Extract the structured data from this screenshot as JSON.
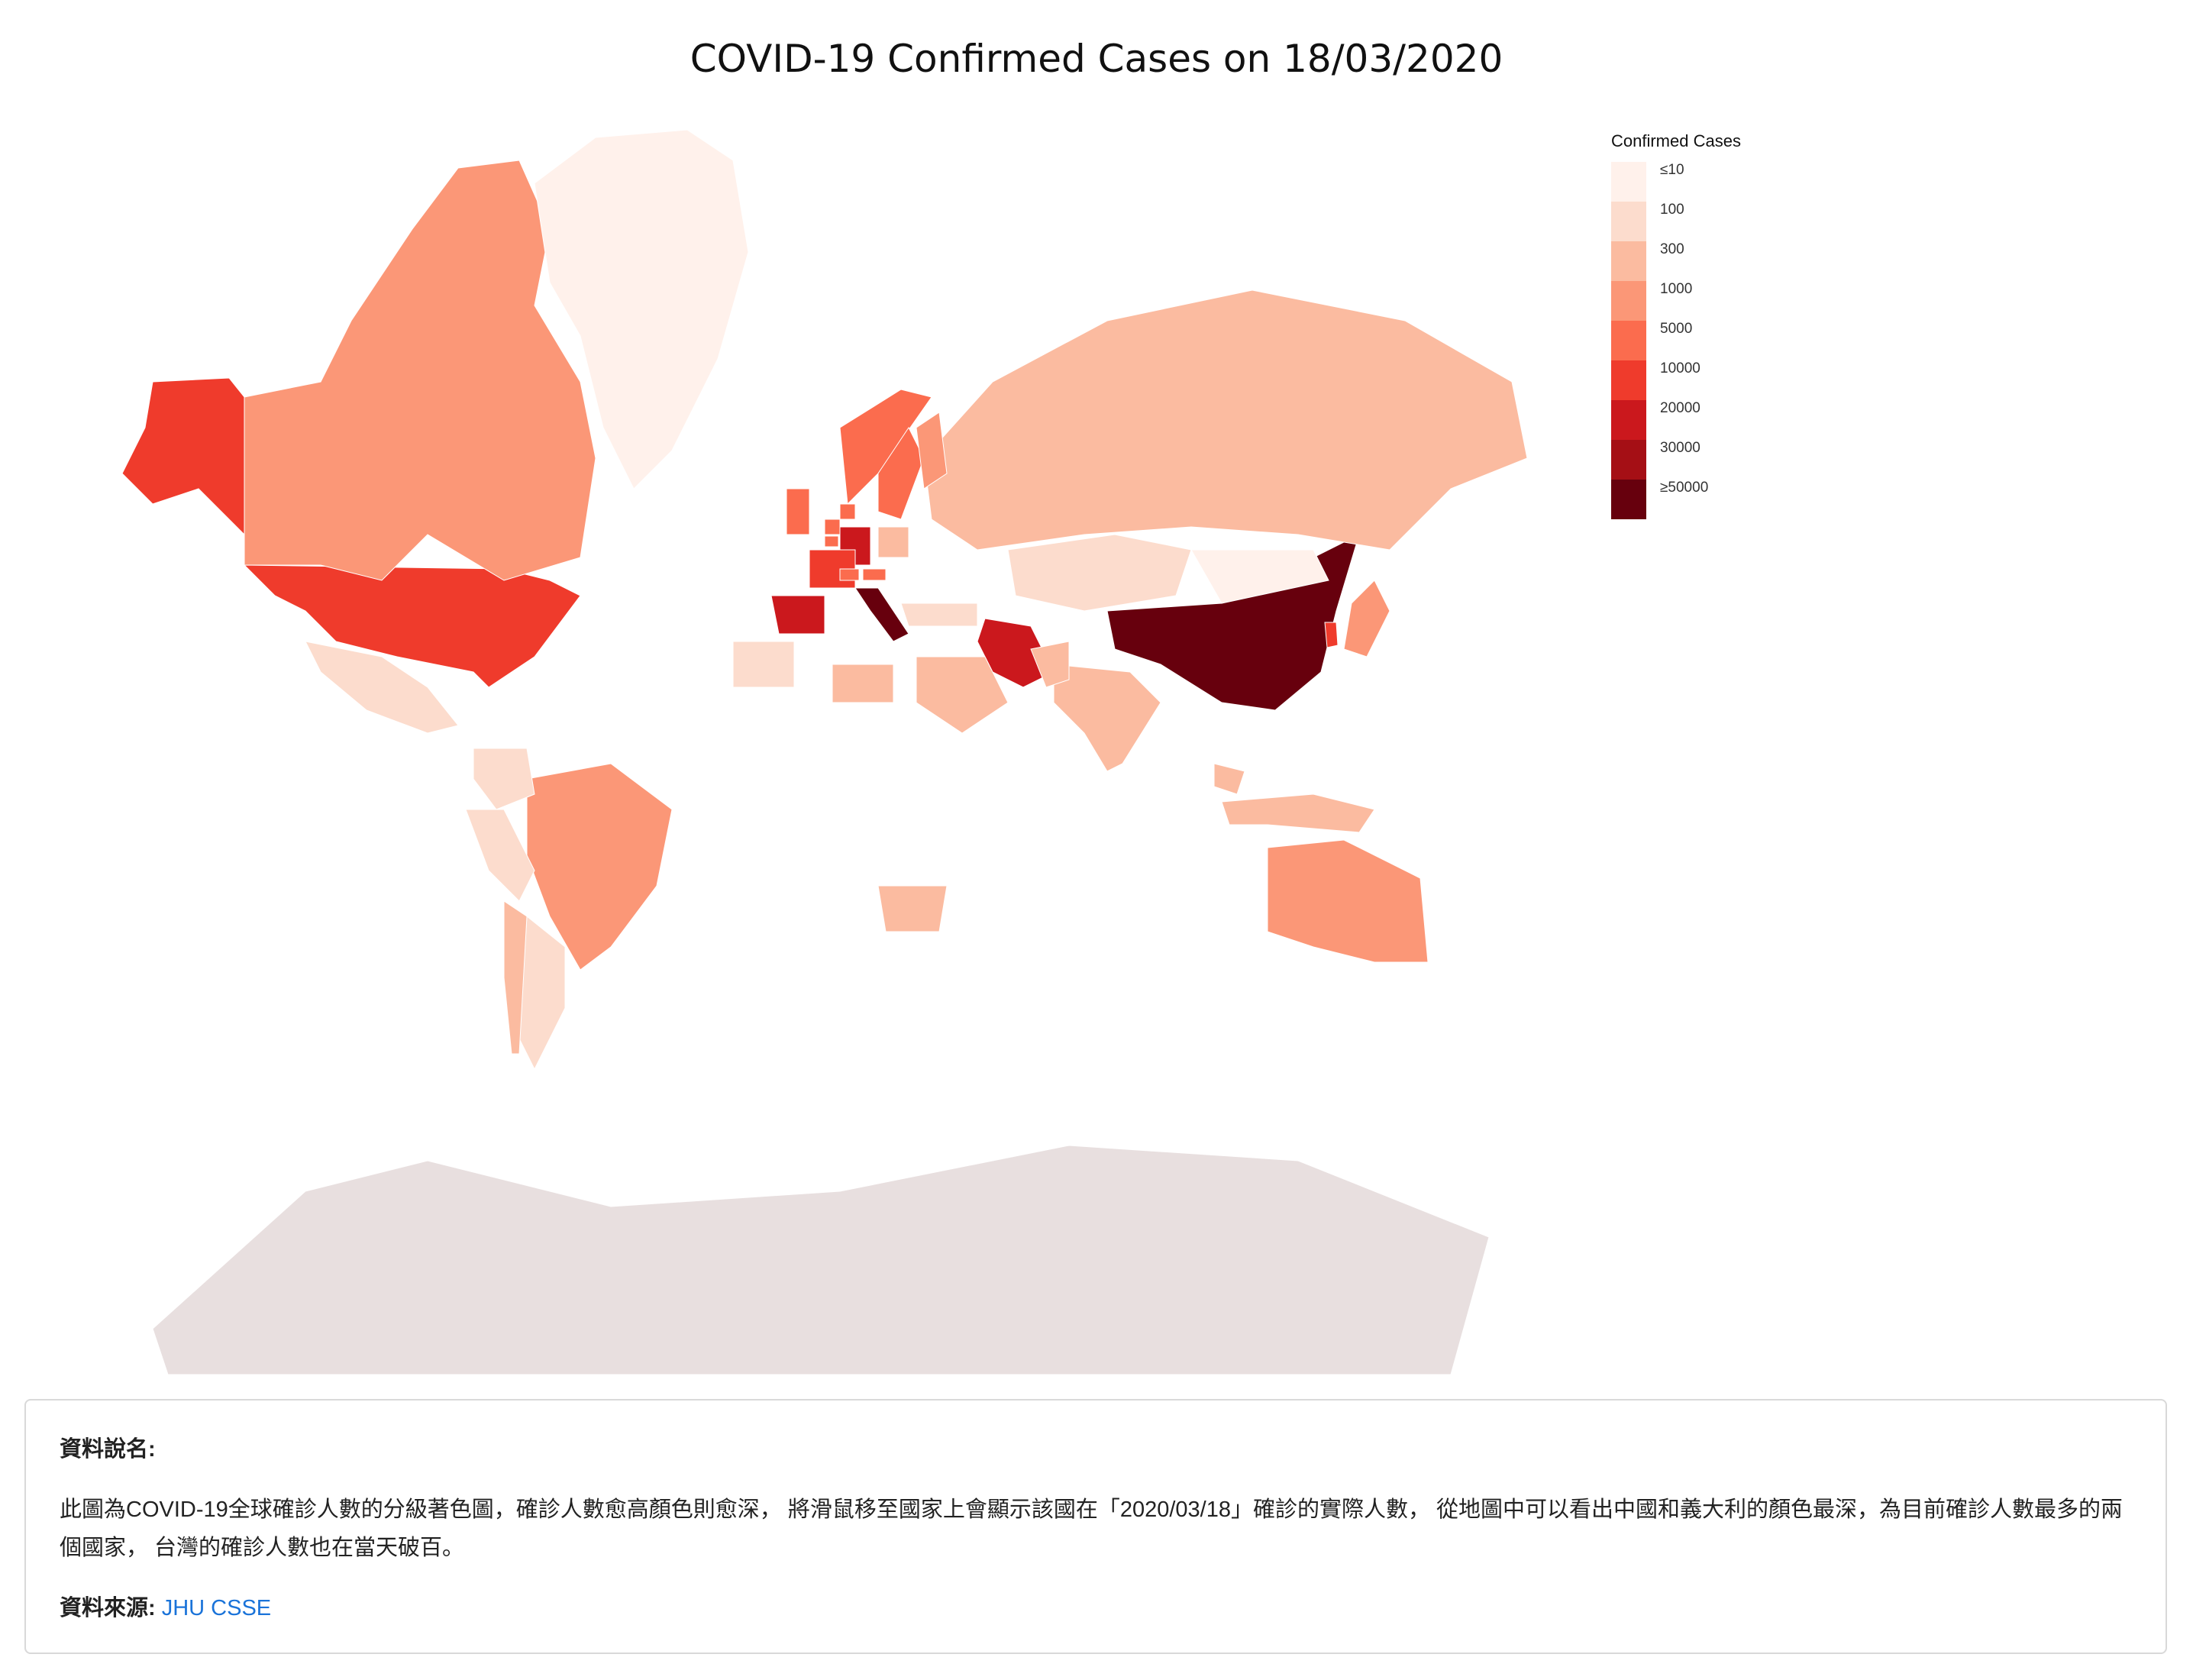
{
  "title": "COVID-19 Confirmed Cases on 18/03/2020",
  "legend": {
    "title": "Confirmed Cases",
    "bins": [
      {
        "label": "≤10",
        "color": "#fff1eb"
      },
      {
        "label": "100",
        "color": "#fcdccd"
      },
      {
        "label": "300",
        "color": "#fbbba0"
      },
      {
        "label": "1000",
        "color": "#fb9777"
      },
      {
        "label": "5000",
        "color": "#fb6c4e"
      },
      {
        "label": "10000",
        "color": "#ef3b2c"
      },
      {
        "label": "20000",
        "color": "#cb181d"
      },
      {
        "label": "30000",
        "color": "#a50f15"
      },
      {
        "label": "≥50000",
        "color": "#67000d"
      }
    ]
  },
  "no_data_color": "#e8dfdf",
  "map_data": {
    "type": "choropleth",
    "date": "18/03/2020",
    "regions": [
      {
        "name": "China",
        "bin": 8
      },
      {
        "name": "Italy",
        "bin": 8
      },
      {
        "name": "Iran",
        "bin": 6
      },
      {
        "name": "Spain",
        "bin": 6
      },
      {
        "name": "Germany",
        "bin": 6
      },
      {
        "name": "United States",
        "bin": 5
      },
      {
        "name": "France",
        "bin": 5
      },
      {
        "name": "South Korea",
        "bin": 5
      },
      {
        "name": "Switzerland",
        "bin": 4
      },
      {
        "name": "United Kingdom",
        "bin": 4
      },
      {
        "name": "Netherlands",
        "bin": 4
      },
      {
        "name": "Norway",
        "bin": 4
      },
      {
        "name": "Sweden",
        "bin": 4
      },
      {
        "name": "Denmark",
        "bin": 4
      },
      {
        "name": "Belgium",
        "bin": 4
      },
      {
        "name": "Austria",
        "bin": 4
      },
      {
        "name": "Japan",
        "bin": 3
      },
      {
        "name": "Canada",
        "bin": 3
      },
      {
        "name": "Greenland",
        "bin": 0
      },
      {
        "name": "Australia",
        "bin": 3
      },
      {
        "name": "Brazil",
        "bin": 3
      },
      {
        "name": "Russia",
        "bin": 2
      },
      {
        "name": "Saudi Arabia",
        "bin": 2
      },
      {
        "name": "South Africa",
        "bin": 2
      },
      {
        "name": "Finland",
        "bin": 3
      },
      {
        "name": "Poland",
        "bin": 2
      },
      {
        "name": "India",
        "bin": 2
      },
      {
        "name": "Pakistan",
        "bin": 2
      },
      {
        "name": "Indonesia",
        "bin": 2
      },
      {
        "name": "Malaysia",
        "bin": 2
      },
      {
        "name": "Kazakhstan",
        "bin": 1
      },
      {
        "name": "Mexico",
        "bin": 1
      },
      {
        "name": "Argentina",
        "bin": 1
      },
      {
        "name": "Peru",
        "bin": 1
      },
      {
        "name": "Chile",
        "bin": 2
      },
      {
        "name": "Colombia",
        "bin": 1
      },
      {
        "name": "Egypt",
        "bin": 2
      },
      {
        "name": "Turkey",
        "bin": 1
      },
      {
        "name": "Algeria",
        "bin": 1
      },
      {
        "name": "Mongolia",
        "bin": 0
      },
      {
        "name": "Antarctica",
        "bin": null
      }
    ]
  },
  "info": {
    "heading": "資料說名:",
    "description": "此圖為COVID-19全球確診人數的分級著色圖，確診人數愈高顏色則愈深， 將滑鼠移至國家上會顯示該國在「2020/03/18」確診的實際人數， 從地圖中可以看出中國和義大利的顏色最深，為目前確診人數最多的兩個國家， 台灣的確診人數也在當天破百。",
    "source_label": "資料來源:",
    "source_link": "JHU CSSE"
  }
}
